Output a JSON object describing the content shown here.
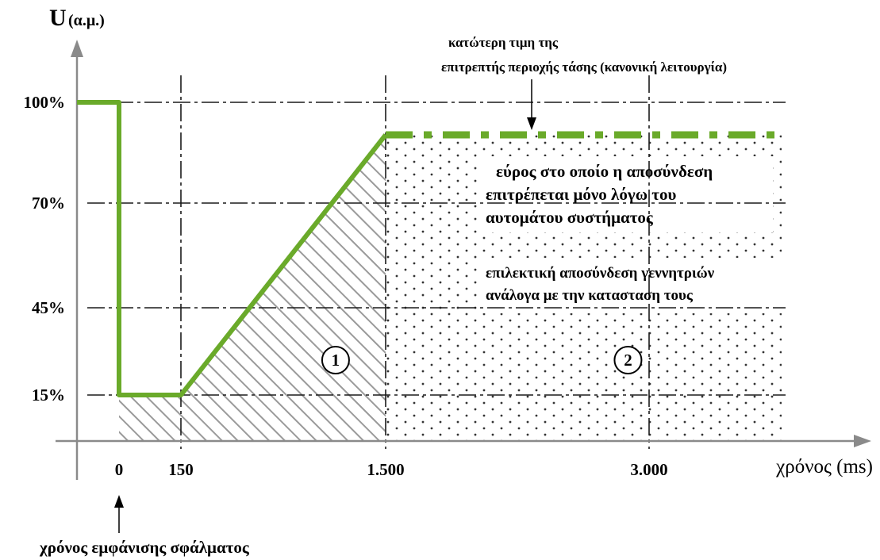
{
  "chart_data": {
    "type": "line",
    "ylabel": "U",
    "ylabel_unit": "(α.μ.)",
    "xlabel": "χρόνος (ms)",
    "x_ticks": [
      {
        "value": 0,
        "label": "0"
      },
      {
        "value": 150,
        "label": "150"
      },
      {
        "value": 1500,
        "label": "1.500"
      },
      {
        "value": 3000,
        "label": "3.000"
      }
    ],
    "y_ticks": [
      {
        "value": 15,
        "label": "15%"
      },
      {
        "value": 45,
        "label": "45%"
      },
      {
        "value": 70,
        "label": "70%"
      },
      {
        "value": 100,
        "label": "100%"
      }
    ],
    "grid": true,
    "series": [
      {
        "color": "#6aaa2a",
        "style": "solid",
        "points": [
          [
            -250,
            100
          ],
          [
            0,
            100
          ],
          [
            0,
            15
          ],
          [
            150,
            15
          ],
          [
            1500,
            92
          ]
        ]
      },
      {
        "color": "#6aaa2a",
        "style": "dash-dot",
        "points": [
          [
            1500,
            92
          ],
          [
            4000,
            92
          ]
        ]
      }
    ],
    "regions": [
      {
        "id": "1",
        "label": "1",
        "fill": "hatched",
        "label_at": [
          1170,
          27
        ]
      },
      {
        "id": "2",
        "label": "2",
        "fill": "dotted",
        "label_at": [
          2880,
          27
        ]
      }
    ],
    "annotations": {
      "upper_limit_line1": "κατώτερη τιμη της",
      "upper_limit_line2": "επιτρεπτής περιοχής τάσης (κανονική λειτουργία)",
      "range_line1": "εύρος στο οποίο η αποσύνδεση",
      "range_line2": "επιτρέπεται μόνο  λόγω του",
      "range_line3": "αυτομάτου συστήματος",
      "selective_line1": "επιλεκτική αποσύνδεση γεννητριών",
      "selective_line2": "ανάλογα με την κατασταση τους",
      "fault_time": "χρόνος εμφάνισης σφάλματος"
    }
  }
}
